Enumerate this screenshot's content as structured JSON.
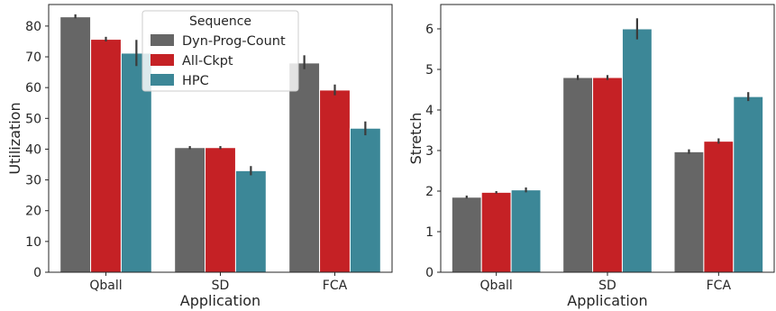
{
  "chart_data": [
    {
      "type": "bar",
      "categories": [
        "Qball",
        "SD",
        "FCA"
      ],
      "xlabel": "Application",
      "ylabel": "Utilization",
      "ylim": [
        0,
        87
      ],
      "yticks": [
        0,
        10,
        20,
        30,
        40,
        50,
        60,
        70,
        80
      ],
      "grid": false,
      "legend": {
        "title": "Sequence",
        "placement": "top-center",
        "entries": [
          "Dyn-Prog-Count",
          "All-Ckpt",
          "HPC"
        ]
      },
      "series": [
        {
          "name": "Dyn-Prog-Count",
          "color": "#666666",
          "values": [
            83,
            40.5,
            68
          ],
          "err_low": [
            82.5,
            40,
            66
          ],
          "err_high": [
            83.8,
            41,
            70.5
          ]
        },
        {
          "name": "All-Ckpt",
          "color": "#c52125",
          "values": [
            75.7,
            40.5,
            59.2
          ],
          "err_low": [
            75,
            40,
            57.5
          ],
          "err_high": [
            76.5,
            41,
            61
          ]
        },
        {
          "name": "HPC",
          "color": "#3c8797",
          "values": [
            71.2,
            33,
            46.8
          ],
          "err_low": [
            67,
            31.5,
            44.5
          ],
          "err_high": [
            75.5,
            34.5,
            49
          ]
        }
      ]
    },
    {
      "type": "bar",
      "categories": [
        "Qball",
        "SD",
        "FCA"
      ],
      "xlabel": "Application",
      "ylabel": "Stretch",
      "ylim": [
        0,
        6.6
      ],
      "yticks": [
        0,
        1,
        2,
        3,
        4,
        5,
        6
      ],
      "grid": false,
      "series": [
        {
          "name": "Dyn-Prog-Count",
          "color": "#666666",
          "values": [
            1.85,
            4.8,
            2.97
          ],
          "err_low": [
            1.82,
            4.74,
            2.92
          ],
          "err_high": [
            1.89,
            4.86,
            3.03
          ]
        },
        {
          "name": "All-Ckpt",
          "color": "#c52125",
          "values": [
            1.97,
            4.8,
            3.23
          ],
          "err_low": [
            1.94,
            4.74,
            3.17
          ],
          "err_high": [
            2.0,
            4.86,
            3.3
          ]
        },
        {
          "name": "HPC",
          "color": "#3c8797",
          "values": [
            2.03,
            6.0,
            4.33
          ],
          "err_low": [
            1.97,
            5.74,
            4.22
          ],
          "err_high": [
            2.09,
            6.26,
            4.44
          ]
        }
      ]
    }
  ]
}
